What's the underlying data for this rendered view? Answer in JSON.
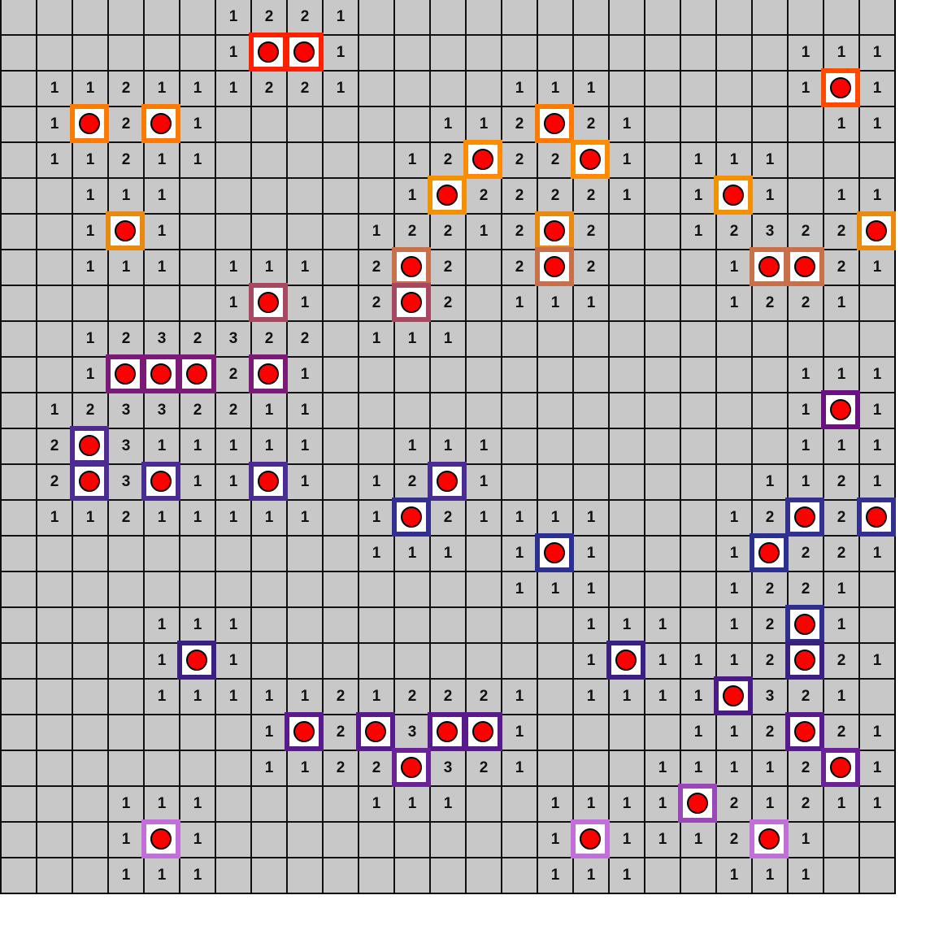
{
  "title": "",
  "board": {
    "rows": [
      "......1221...............",
      "......1**1............111",
      ".11211122 1....111.....1*1",
      ".1*2*1......112*21.....111",
      ".11211.....12*22*1.111...",
      "..111......1*22221.1*1.11",
      "..1*1.....12212*2..12322*",
      "..111.111.2*2.2*2...1**21",
      "......1*1.2*2.111...1221.",
      "..1232322.111............",
      "..1***2*1.............111",
      ".12332211.............1*1",
      ".2*311111..111........111",
      ".2*3*11*1.12*1.......1121",
      ".11211111.1*21111...12*2*",
      "..........111.1*1...1*221",
      "..............111...1221.",
      "....111.........111.12*1.",
      "....1*1.........1*1112*21",
      "....11111212221.1111*321.",
      ".......1*2*3**1....112*21",
      ".......1122*321...11112*1",
      "...111....111..1111*21211",
      "...1*1.........1*1112*1..",
      "...111.........111..111.."
    ],
    "mine_border_colors_by_row": {
      "1": "#ff2000",
      "2": "#ff4a00",
      "3": "#ff7a00",
      "4": "#ff8c00",
      "5": "#f59000",
      "6": "#e88a10",
      "7": "#c8704a",
      "8": "#a84860",
      "10": "#7c1a78",
      "11": "#6a1080",
      "12": "#4f2a90",
      "13": "#4a2c92",
      "14": "#343090",
      "15": "#2c3090",
      "17": "#2e2f8e",
      "18": "#3a2080",
      "19": "#4a1a86",
      "20": "#581a8c",
      "21": "#6a2296",
      "22": "#9a48b8",
      "23": "#c070d8"
    }
  }
}
